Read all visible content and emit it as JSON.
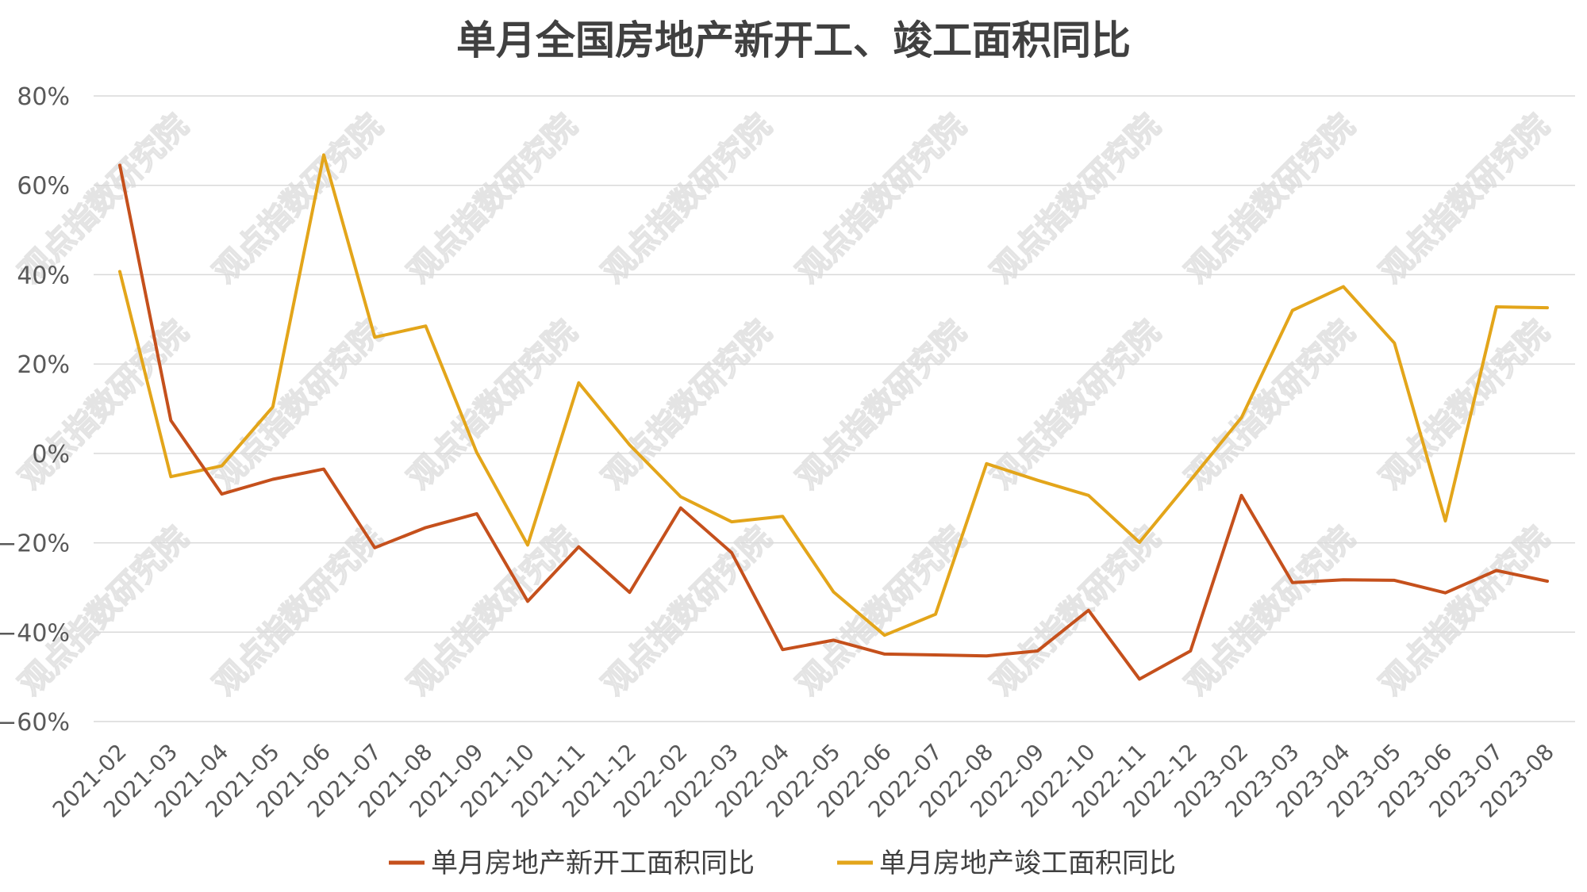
{
  "chart_data": {
    "type": "line",
    "title": "单月全国房地产新开工、竣工面积同比",
    "y_ticks": [
      "80%",
      "60%",
      "40%",
      "20%",
      "0%",
      "−20%",
      "−40%",
      "−60%"
    ],
    "ylim": [
      -60,
      80
    ],
    "y_unit": "%",
    "grid": true,
    "legend_position": "bottom",
    "watermark": "观点指数研究院",
    "categories": [
      "2021-02",
      "2021-03",
      "2021-04",
      "2021-05",
      "2021-06",
      "2021-07",
      "2021-08",
      "2021-09",
      "2021-10",
      "2021-11",
      "2021-12",
      "2022-02",
      "2022-03",
      "2022-04",
      "2022-05",
      "2022-06",
      "2022-07",
      "2022-08",
      "2022-09",
      "2022-10",
      "2022-11",
      "2022-12",
      "2023-02",
      "2023-03",
      "2023-04",
      "2023-05",
      "2023-06",
      "2023-07",
      "2023-08"
    ],
    "series": [
      {
        "name": "单月房地产新开工面积同比",
        "color": "#C5501C",
        "values": [
          64.5,
          7.4,
          -9.1,
          -5.8,
          -3.5,
          -21.1,
          -16.6,
          -13.5,
          -33.1,
          -20.9,
          -31.1,
          -12.2,
          -22.2,
          -43.9,
          -41.8,
          -44.9,
          -45.1,
          -45.3,
          -44.2,
          -35.1,
          -50.5,
          -44.2,
          -9.4,
          -28.9,
          -28.3,
          -28.4,
          -31.2,
          -26.2,
          -28.6
        ]
      },
      {
        "name": "单月房地产竣工面积同比",
        "color": "#E3A51A",
        "values": [
          40.7,
          -5.2,
          -2.8,
          10.4,
          66.8,
          26.0,
          28.5,
          0.2,
          -20.5,
          15.8,
          1.9,
          -9.7,
          -15.3,
          -14.1,
          -31.0,
          -40.7,
          -36.0,
          -2.3,
          -6.0,
          -9.4,
          -19.9,
          -6.0,
          8.0,
          32.0,
          37.3,
          24.7,
          -15.1,
          32.8,
          32.6
        ]
      }
    ]
  }
}
